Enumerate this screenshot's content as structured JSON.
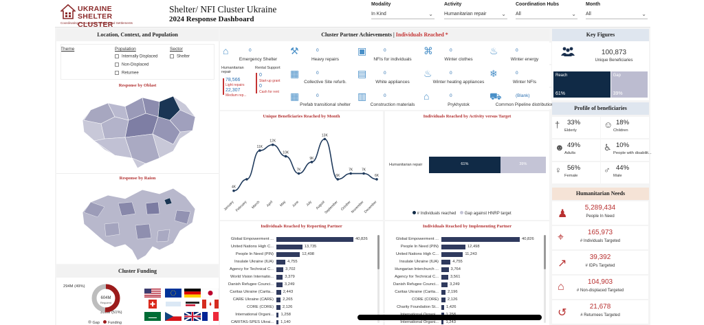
{
  "header": {
    "logo_line1": "UKRAINE",
    "logo_line2": "SHELTER CLUSTER",
    "logo_tagline": "Coordinating Humanitarian Shelter and Settlements",
    "title": "Shelter/ NFI Cluster Ukraine",
    "subtitle": "2024 Response Dashboard"
  },
  "filters": [
    {
      "label": "Modality",
      "value": "In Kind"
    },
    {
      "label": "Activity",
      "value": "Humanitarian repair"
    },
    {
      "label": "Coordination Hubs",
      "value": "All"
    },
    {
      "label": "Month",
      "value": "All"
    }
  ],
  "location_panel": {
    "title": "Location, Context, and Population",
    "theme_label": "Theme",
    "population_label": "Population",
    "population_options": [
      "Internally Displaced",
      "Non-Displaced",
      "Returnee"
    ],
    "sector_label": "Sector",
    "sector_options": [
      "Shelter"
    ],
    "oblast_title": "Response by Oblast",
    "raion_title": "Response by Raion"
  },
  "funding_panel": {
    "title": "Cluster Funding",
    "gap_text": "294M (49%)",
    "funded_text": "310M (51%)",
    "center_value": "604M",
    "center_label": "Required",
    "legend_gap": "Gap",
    "legend_funding": "Funding",
    "gap_color": "#bdbdbd",
    "funding_color": "#9c1b1b",
    "gap_fraction": 0.49
  },
  "achievements": {
    "title_main": "Cluster Partner Achievements | ",
    "title_highlight": "Individuals Reached *",
    "tiles": [
      {
        "label": "Emergency Shelter",
        "value": "0",
        "icon": "emergency-shelter-icon"
      },
      {
        "label": "Heavy repairs",
        "value": "0",
        "icon": "tools-icon"
      },
      {
        "label": "NFIs for individuals",
        "value": "0",
        "icon": "nfi-box-icon"
      },
      {
        "label": "Winter clothes",
        "value": "0",
        "icon": "shirt-icon"
      },
      {
        "label": "Winter energy",
        "value": "0",
        "icon": "flame-icon"
      },
      {
        "label": "Collective Site refurb.",
        "value": "0",
        "icon": "building-icon"
      },
      {
        "label": "White appliances",
        "value": "0",
        "icon": "appliance-icon"
      },
      {
        "label": "Winter heating appliances",
        "value": "0",
        "icon": "heater-icon"
      },
      {
        "label": "Winter NFIs",
        "value": "0",
        "icon": "snowflake-icon"
      },
      {
        "label": "Prefab transitional shelter",
        "value": "0",
        "icon": "prefab-icon"
      },
      {
        "label": "Construction materials",
        "value": "0",
        "icon": "bricks-icon"
      },
      {
        "label": "Prykhystok",
        "value": "0",
        "icon": "house-icon"
      },
      {
        "label": "Common Pipeline distribution",
        "value": "(Blank)",
        "icon": "truck-icon"
      }
    ],
    "hum_repair_title": "Humanitarian repair",
    "light_value": "78,566",
    "light_label": "Light repairs",
    "medium_value": "22,307",
    "medium_label": "Medium rep...",
    "rental_title": "Rental Support",
    "rental_start_value": "0",
    "rental_start_label": "Start-up grant",
    "rental_cash_value": "0",
    "rental_cash_label": "Cash for rent"
  },
  "key_figures": {
    "title": "Key Figures",
    "unique_value": "100,873",
    "unique_label": "Unique Beneficiaries",
    "reach_label": "Reach",
    "reach_pct": "61%",
    "gap_label": "Gap",
    "gap_pct": "39%",
    "reach_fraction": 0.61,
    "reach_color": "#102a46",
    "gap_color": "#bcbcd0"
  },
  "profile": {
    "title": "Profile of beneficiaries",
    "cells": [
      {
        "pct": "33%",
        "label": "Elderly",
        "icon": "elderly-icon"
      },
      {
        "pct": "18%",
        "label": "Children",
        "icon": "children-icon"
      },
      {
        "pct": "49%",
        "label": "Adults",
        "icon": "adults-icon"
      },
      {
        "pct": "10%",
        "label": "People with disabilit...",
        "icon": "wheelchair-icon"
      },
      {
        "pct": "56%",
        "label": "Female",
        "icon": "female-icon"
      },
      {
        "pct": "44%",
        "label": "Male",
        "icon": "male-icon"
      }
    ]
  },
  "needs": {
    "title": "Humanitarian Needs",
    "rows": [
      {
        "value": "5,289,434",
        "label": "People In Need",
        "icon": "people-group-icon"
      },
      {
        "value": "165,973",
        "label": "# Individuals Targeted",
        "icon": "target-people-icon"
      },
      {
        "value": "39,392",
        "label": "# IDPs Targeted",
        "icon": "running-person-icon"
      },
      {
        "value": "104,903",
        "label": "# Non-displaced Targeted",
        "icon": "person-home-icon"
      },
      {
        "value": "21,678",
        "label": "# Returnees Targeted",
        "icon": "returnee-icon"
      }
    ]
  },
  "chart_data": [
    {
      "type": "line",
      "title": "Unique Beneficiaries Reached by Month",
      "categories": [
        "January",
        "February",
        "March",
        "April",
        "May",
        "June",
        "July",
        "August",
        "September",
        "October",
        "November",
        "December"
      ],
      "values": [
        4,
        6,
        11,
        12,
        10,
        7,
        9,
        13,
        6,
        7,
        7,
        6
      ],
      "data_labels": [
        "4K",
        "",
        "11K",
        "12K",
        "10K",
        "7K",
        "9K",
        "13K",
        "6K",
        "7K",
        "7K",
        "6K"
      ],
      "color": "#1f3a5c"
    },
    {
      "type": "bar",
      "title": "Individuals Reached by Activity versus Target",
      "categories": [
        "Humanitarian repair"
      ],
      "series": [
        {
          "name": "# Individuals reached",
          "values": [
            61
          ],
          "label": "61%",
          "color": "#102a46"
        },
        {
          "name": "Gap against HNRP target",
          "values": [
            39
          ],
          "label": "39%",
          "color": "#c4c4d6"
        }
      ]
    },
    {
      "type": "bar",
      "title": "Individuals Reached by Reporting Partner",
      "categories": [
        "Global Empowerment ...",
        "United Nations High C...",
        "People In Need (PIN)",
        "Insulate Ukraine (IUA)",
        "Agency for Technical C...",
        "World Vision Internatio...",
        "Danish Refugee Counci...",
        "Caritas Ukraine (Carita...",
        "CARE Ukraine (CARE)",
        "CORE (CORE)",
        "International Organi...",
        "CARITAS-SPES Ukrai..."
      ],
      "values": [
        40826,
        13735,
        12498,
        4755,
        3702,
        3379,
        3249,
        2443,
        2265,
        2126,
        1258,
        1140
      ],
      "value_labels": [
        "40,826",
        "13,735",
        "12,498",
        "4,755",
        "3,702",
        "3,379",
        "3,249",
        "2,443",
        "2,265",
        "2,126",
        "1,258",
        "1,140"
      ],
      "color": "#2f3a5e"
    },
    {
      "type": "bar",
      "title": "Individuals Reached by Implementing Partner",
      "categories": [
        "Global Empowerment ...",
        "People In Need (PIN)",
        "United Nations High C...",
        "Insulate Ukraine (IUA)",
        "Hungarian Interchurch ...",
        "Agency for Technical C...",
        "Danish Refugee Counci...",
        "Caritas Ukraine (Carita...",
        "CORE (CORE)",
        "Charity Foundation St...",
        "International Organi...",
        "International Organi..."
      ],
      "values": [
        40826,
        12498,
        11243,
        4755,
        3764,
        3561,
        3249,
        2196,
        2126,
        1426,
        1258,
        1243
      ],
      "value_labels": [
        "40,826",
        "12,498",
        "11,243",
        "4,755",
        "3,764",
        "3,561",
        "3,249",
        "2,196",
        "2,126",
        "1,426",
        "1,258",
        "1,243"
      ],
      "color": "#2f3a5e"
    }
  ]
}
